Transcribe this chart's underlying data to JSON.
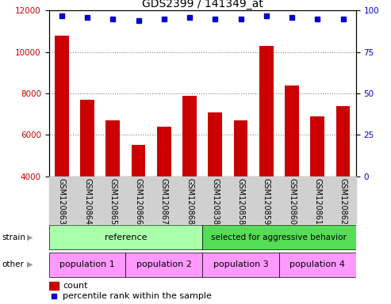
{
  "title": "GDS2399 / 141349_at",
  "categories": [
    "GSM120863",
    "GSM120864",
    "GSM120865",
    "GSM120866",
    "GSM120867",
    "GSM120868",
    "GSM120838",
    "GSM120858",
    "GSM120859",
    "GSM120860",
    "GSM120861",
    "GSM120862"
  ],
  "bar_values": [
    10800,
    7700,
    6700,
    5500,
    6400,
    7900,
    7100,
    6700,
    10300,
    8400,
    6900,
    7400
  ],
  "percentile_values": [
    97,
    96,
    95,
    94,
    95,
    96,
    95,
    95,
    97,
    96,
    95,
    95
  ],
  "bar_color": "#cc0000",
  "dot_color": "#0000cc",
  "ylim_left": [
    4000,
    12000
  ],
  "ylim_right": [
    0,
    100
  ],
  "yticks_left": [
    4000,
    6000,
    8000,
    10000,
    12000
  ],
  "yticks_right": [
    0,
    25,
    50,
    75,
    100
  ],
  "strain_labels": [
    "reference",
    "selected for aggressive behavior"
  ],
  "strain_colors": [
    "#aaffaa",
    "#55dd55"
  ],
  "other_labels": [
    "population 1",
    "population 2",
    "population 3",
    "population 4"
  ],
  "other_color": "#ff99ff",
  "pop_ranges": [
    [
      0,
      3
    ],
    [
      3,
      6
    ],
    [
      6,
      9
    ],
    [
      9,
      12
    ]
  ],
  "label_bg_color": "#d0d0d0",
  "legend_count_color": "#cc0000",
  "legend_dot_color": "#0000cc",
  "grid_color": "#808080"
}
